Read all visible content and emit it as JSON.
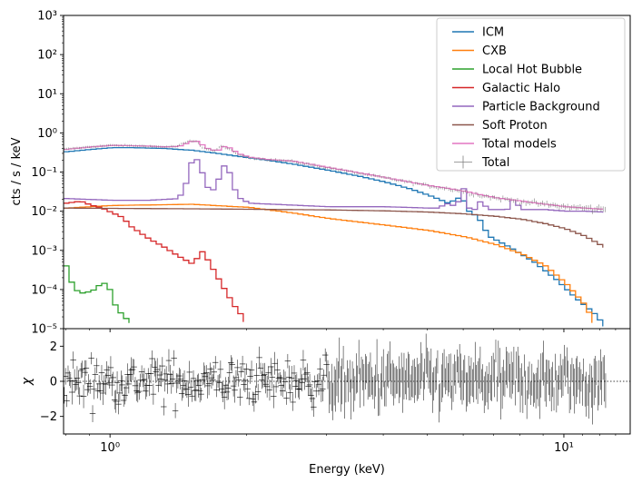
{
  "chart_data": [
    {
      "type": "line",
      "title": "",
      "xlabel": "",
      "ylabel": "cts / s / keV",
      "xscale": "log",
      "yscale": "log",
      "xlim": [
        0.79,
        14.0
      ],
      "ylim": [
        1e-05,
        1000
      ],
      "ytick_labels": [
        "10⁻⁵",
        "10⁻⁴",
        "10⁻³",
        "10⁻²",
        "10⁻¹",
        "10⁰",
        "10¹",
        "10²",
        "10³"
      ],
      "ytick_values": [
        1e-05,
        0.0001,
        0.001,
        0.01,
        0.1,
        1,
        10,
        100,
        1000
      ],
      "legend_position": "top-right",
      "series": [
        {
          "name": "ICM",
          "color": "#1f77b4",
          "x": [
            0.79,
            0.9,
            1.0,
            1.1,
            1.2,
            1.3,
            1.5,
            1.7,
            1.9,
            2.2,
            2.5,
            3.0,
            3.5,
            4.0,
            4.5,
            5.0,
            5.5,
            5.8,
            5.95,
            6.1,
            6.4,
            6.6,
            6.8,
            7.5,
            8.5,
            9.5,
            10.5,
            11.5,
            12.3,
            12.5
          ],
          "values": [
            0.33,
            0.38,
            0.42,
            0.42,
            0.41,
            0.4,
            0.36,
            0.3,
            0.25,
            0.2,
            0.16,
            0.11,
            0.078,
            0.055,
            0.038,
            0.025,
            0.016,
            0.022,
            0.018,
            0.01,
            0.007,
            0.0035,
            0.0022,
            0.0012,
            0.0005,
            0.00018,
            6e-05,
            2.5e-05,
            1e-05,
            7e-06
          ]
        },
        {
          "name": "CXB",
          "color": "#ff7f0e",
          "x": [
            0.79,
            1.0,
            1.5,
            2.0,
            2.5,
            3.0,
            4.0,
            5.0,
            6.0,
            7.0,
            8.0,
            9.0,
            10.0,
            11.0,
            11.7
          ],
          "values": [
            0.012,
            0.014,
            0.015,
            0.0125,
            0.009,
            0.0065,
            0.0044,
            0.0032,
            0.0022,
            0.0014,
            0.0008,
            0.0004,
            0.00014,
            4e-05,
            1e-05
          ]
        },
        {
          "name": "Local Hot Bubble",
          "color": "#2ca02c",
          "x": [
            0.79,
            0.82,
            0.85,
            0.9,
            0.95,
            0.98,
            1.0,
            1.05,
            1.1,
            1.13
          ],
          "values": [
            0.0004,
            0.00011,
            8e-05,
            9e-05,
            0.00015,
            0.00013,
            5e-05,
            2.2e-05,
            1.4e-05,
            1e-05
          ]
        },
        {
          "name": "Galactic Halo",
          "color": "#d62728",
          "x": [
            0.79,
            0.85,
            0.9,
            0.95,
            1.0,
            1.05,
            1.1,
            1.2,
            1.3,
            1.4,
            1.5,
            1.58,
            1.65,
            1.75,
            1.85,
            1.95,
            2.0
          ],
          "values": [
            0.016,
            0.018,
            0.014,
            0.012,
            0.009,
            0.007,
            0.004,
            0.002,
            0.0012,
            0.0007,
            0.00045,
            0.00095,
            0.0004,
            0.00012,
            4e-05,
            1.8e-05,
            1e-05
          ]
        },
        {
          "name": "Particle Background",
          "color": "#9467bd",
          "x": [
            0.79,
            1.0,
            1.2,
            1.4,
            1.45,
            1.5,
            1.55,
            1.6,
            1.65,
            1.7,
            1.75,
            1.8,
            1.85,
            1.9,
            2.0,
            3.0,
            4.0,
            5.0,
            5.3,
            5.4,
            5.5,
            5.8,
            5.95,
            6.1,
            6.3,
            6.5,
            6.7,
            7.0,
            7.4,
            7.6,
            8.0,
            9.0,
            10.0,
            11.0,
            12.0,
            12.3
          ],
          "values": [
            0.021,
            0.019,
            0.019,
            0.021,
            0.05,
            0.22,
            0.2,
            0.05,
            0.03,
            0.05,
            0.15,
            0.12,
            0.04,
            0.022,
            0.016,
            0.013,
            0.013,
            0.012,
            0.012,
            0.025,
            0.012,
            0.018,
            0.04,
            0.012,
            0.011,
            0.02,
            0.011,
            0.011,
            0.011,
            0.02,
            0.011,
            0.011,
            0.01,
            0.01,
            0.0095,
            0.009
          ]
        },
        {
          "name": "Soft Proton",
          "color": "#8c564b",
          "x": [
            0.79,
            1.0,
            1.5,
            2.0,
            3.0,
            4.0,
            5.0,
            6.0,
            7.0,
            8.0,
            9.0,
            10.0,
            11.0,
            12.0,
            12.3,
            12.35
          ],
          "values": [
            0.012,
            0.0118,
            0.0115,
            0.0112,
            0.0108,
            0.0102,
            0.0095,
            0.0085,
            0.0074,
            0.0062,
            0.0048,
            0.0035,
            0.0023,
            0.0013,
            0.0011,
            0.0006
          ]
        },
        {
          "name": "Total models",
          "color": "#e377c2",
          "x": [
            0.79,
            0.9,
            1.0,
            1.1,
            1.2,
            1.3,
            1.4,
            1.5,
            1.55,
            1.6,
            1.7,
            1.75,
            1.8,
            1.9,
            2.0,
            2.2,
            2.5,
            3.0,
            3.5,
            4.0,
            4.5,
            5.0,
            5.5,
            6.0,
            6.5,
            7.0,
            8.0,
            9.0,
            10.0,
            11.0,
            12.3
          ],
          "values": [
            0.38,
            0.44,
            0.48,
            0.47,
            0.46,
            0.44,
            0.45,
            0.62,
            0.6,
            0.42,
            0.34,
            0.45,
            0.43,
            0.29,
            0.24,
            0.21,
            0.19,
            0.13,
            0.095,
            0.072,
            0.056,
            0.045,
            0.038,
            0.032,
            0.026,
            0.022,
            0.018,
            0.015,
            0.013,
            0.012,
            0.011
          ]
        },
        {
          "name": "Total",
          "color": "#7f7f7f",
          "style": "errorbars",
          "values": [],
          "note": "observed spectrum data points with error bars"
        }
      ]
    },
    {
      "type": "scatter",
      "title": "",
      "xlabel": "Energy (keV)",
      "ylabel": "χ",
      "xscale": "log",
      "xlim": [
        0.79,
        14.0
      ],
      "ylim": [
        -3,
        3
      ],
      "ytick_values": [
        -2,
        0,
        2
      ],
      "ytick_labels": [
        "−2",
        "0",
        "2"
      ],
      "xtick_values": [
        1,
        10
      ],
      "xtick_labels": [
        "10⁰",
        "10¹"
      ],
      "reference_line": 0,
      "points_note": "residual points scattered within about ±2.5 around zero with error bars"
    }
  ],
  "legend": {
    "entries": [
      "ICM",
      "CXB",
      "Local Hot Bubble",
      "Galactic Halo",
      "Particle Background",
      "Soft Proton",
      "Total models",
      "Total"
    ]
  }
}
